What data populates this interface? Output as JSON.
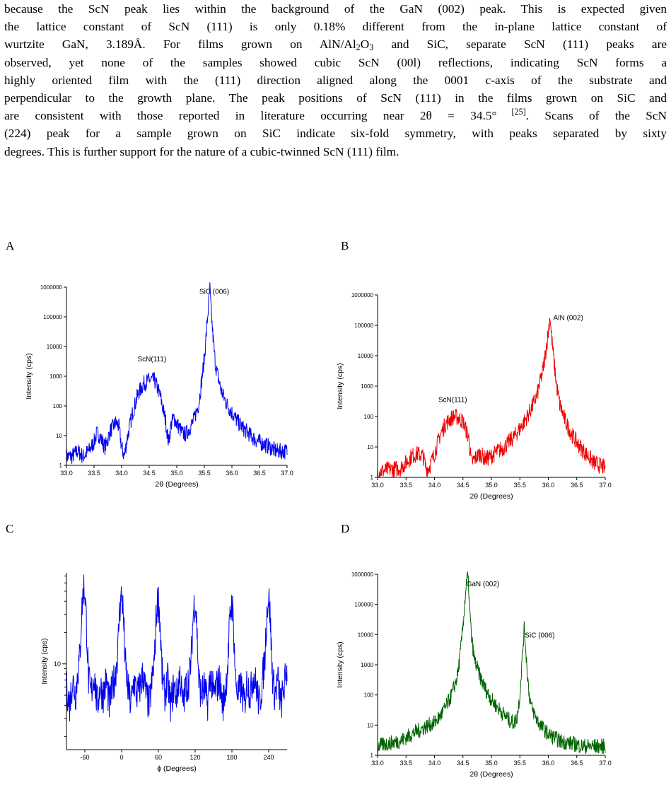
{
  "paragraph": {
    "l1": "because the ScN peak lies within the background of the GaN (002) peak. This is expected given",
    "l2": "the lattice constant of ScN (111) is only 0.18% different from the in-plane lattice constant of",
    "l3a": "wurtzite GaN, 3.189Å. For films grown on AlN/Al",
    "l3b": "2",
    "l3c": "O",
    "l3d": "3",
    "l3e": " and SiC, separate ScN (111) peaks are",
    "l4": "observed, yet none of the samples showed cubic ScN (00l) reflections, indicating ScN forms a",
    "l5": "highly oriented film with  the (111) direction aligned along the 0001 c-axis of the substrate and",
    "l6": "perpendicular to the growth plane. The peak positions of ScN (111) in the films grown on SiC and",
    "l7a": "are consistent with those reported in literature occurring near 2θ = 34.5°",
    "l7b": " [25]",
    "l7c": ". Scans of the ScN",
    "l8": "(224) peak for a sample grown on SiC indicate six-fold symmetry, with peaks separated by sixty",
    "l9": "degrees. This is further support for the nature of a cubic-twinned ScN (111) film."
  },
  "panels": {
    "a": "A",
    "b": "B",
    "c": "C",
    "d": "D"
  },
  "colors": {
    "a": "#0000ee",
    "b": "#ee0000",
    "c": "#0000ee",
    "d": "#006400"
  },
  "chart_data": [
    {
      "panel": "A",
      "type": "line",
      "scale": "log",
      "xlabel": "2θ (Degrees)",
      "ylabel": "Intensity (cps)",
      "xlim": [
        33.0,
        37.0
      ],
      "ylim": [
        1,
        1000000
      ],
      "xticks": [
        "33.0",
        "33.5",
        "34.0",
        "34.5",
        "35.0",
        "35.5",
        "36.0",
        "36.5",
        "37.0"
      ],
      "yticks": [
        "1",
        "10",
        "100",
        "1000",
        "10000",
        "100000",
        "1000000"
      ],
      "annotations": [
        {
          "text": "ScN(111)",
          "x": 34.55,
          "y": 3200
        },
        {
          "text": "SiC (006)",
          "x": 35.68,
          "y": 600000
        }
      ],
      "series": [
        {
          "x": [
            33.0,
            33.1,
            33.2,
            33.3,
            33.4,
            33.5,
            33.55,
            33.6,
            33.7,
            33.8,
            33.9,
            33.95,
            34.0,
            34.05,
            34.1,
            34.2,
            34.3,
            34.4,
            34.5,
            34.55,
            34.6,
            34.7,
            34.8,
            34.85,
            34.9,
            34.95,
            35.0,
            35.05,
            35.1,
            35.15,
            35.2,
            35.3,
            35.4,
            35.5,
            35.55,
            35.58,
            35.6,
            35.62,
            35.65,
            35.7,
            35.8,
            35.9,
            36.0,
            36.1,
            36.2,
            36.3,
            36.4,
            36.5,
            36.6,
            36.7,
            36.8,
            36.9,
            37.0
          ],
          "y": [
            2,
            2,
            3,
            2,
            3,
            6,
            12,
            10,
            4,
            15,
            28,
            20,
            4,
            2,
            8,
            60,
            260,
            560,
            750,
            760,
            700,
            220,
            30,
            6,
            25,
            40,
            25,
            18,
            12,
            11,
            14,
            30,
            120,
            4000,
            60000,
            300000,
            900000,
            200000,
            30000,
            2500,
            350,
            120,
            60,
            30,
            18,
            12,
            8,
            6,
            5,
            4,
            3,
            3,
            3
          ]
        }
      ]
    },
    {
      "panel": "B",
      "type": "line",
      "scale": "log",
      "xlabel": "2θ (Degrees)",
      "ylabel": "Intensity (cps)",
      "xlim": [
        33.0,
        37.0
      ],
      "ylim": [
        1,
        1000000
      ],
      "xticks": [
        "33.0",
        "33.5",
        "34.0",
        "34.5",
        "35.0",
        "35.5",
        "36.0",
        "36.5",
        "37.0"
      ],
      "yticks": [
        "1",
        "10",
        "100",
        "1000",
        "10000",
        "100000",
        "1000000"
      ],
      "annotations": [
        {
          "text": "ScN(111)",
          "x": 34.32,
          "y": 300
        },
        {
          "text": "AlN (002)",
          "x": 36.35,
          "y": 150000
        }
      ],
      "series": [
        {
          "x": [
            33.0,
            33.2,
            33.4,
            33.5,
            33.6,
            33.7,
            33.8,
            33.85,
            33.9,
            34.0,
            34.1,
            34.2,
            34.3,
            34.35,
            34.4,
            34.5,
            34.6,
            34.65,
            34.7,
            34.8,
            34.9,
            35.0,
            35.1,
            35.2,
            35.3,
            35.4,
            35.5,
            35.6,
            35.7,
            35.8,
            35.9,
            35.95,
            36.0,
            36.03,
            36.05,
            36.1,
            36.15,
            36.2,
            36.3,
            36.4,
            36.5,
            36.6,
            36.7,
            36.8,
            36.9,
            37.0
          ],
          "y": [
            1.5,
            1.8,
            2,
            3,
            5,
            6,
            5,
            2,
            2,
            6,
            25,
            60,
            90,
            100,
            95,
            70,
            20,
            3,
            4,
            6,
            4,
            5,
            7,
            9,
            14,
            22,
            40,
            80,
            180,
            500,
            3000,
            12000,
            60000,
            220000,
            60000,
            6000,
            900,
            250,
            70,
            28,
            14,
            8,
            5,
            3,
            2.5,
            2
          ]
        }
      ]
    },
    {
      "panel": "C",
      "type": "line",
      "scale": "log",
      "xlabel": "ϕ (Degrees)",
      "ylabel": "Intensity (cps)",
      "xlim": [
        -90,
        270
      ],
      "ylim": [
        1.5,
        75
      ],
      "xticks": [
        "-60",
        "0",
        "60",
        "120",
        "180",
        "240"
      ],
      "yticks": [
        "10"
      ],
      "series": [
        {
          "x": [
            -90,
            -85,
            -80,
            -75,
            -72,
            -68,
            -66,
            -64,
            -62,
            -60,
            -58,
            -56,
            -54,
            -50,
            -45,
            -40,
            -35,
            -30,
            -25,
            -20,
            -15,
            -10,
            -6,
            -4,
            -2,
            0,
            2,
            4,
            6,
            10,
            15,
            20,
            25,
            30,
            35,
            40,
            45,
            50,
            54,
            56,
            58,
            60,
            62,
            64,
            66,
            70,
            75,
            80,
            85,
            90,
            95,
            100,
            105,
            110,
            114,
            116,
            118,
            120,
            122,
            124,
            126,
            130,
            135,
            140,
            145,
            150,
            155,
            160,
            165,
            170,
            174,
            176,
            178,
            180,
            182,
            184,
            186,
            190,
            195,
            200,
            205,
            210,
            215,
            220,
            225,
            230,
            234,
            236,
            238,
            240,
            242,
            244,
            246,
            250,
            255,
            260,
            265,
            270
          ],
          "y": [
            6,
            4,
            7,
            5,
            8,
            12,
            25,
            40,
            55,
            50,
            30,
            15,
            7,
            5,
            8,
            4,
            6,
            5,
            7,
            4,
            6,
            8,
            14,
            28,
            40,
            45,
            35,
            20,
            10,
            6,
            4,
            7,
            5,
            6,
            8,
            5,
            4,
            7,
            12,
            25,
            38,
            42,
            30,
            16,
            8,
            5,
            7,
            4,
            6,
            5,
            8,
            4,
            6,
            7,
            12,
            24,
            36,
            40,
            30,
            14,
            7,
            5,
            6,
            4,
            8,
            5,
            6,
            7,
            4,
            6,
            12,
            22,
            34,
            38,
            28,
            14,
            7,
            5,
            6,
            4,
            7,
            5,
            8,
            6,
            4,
            7,
            12,
            24,
            38,
            44,
            32,
            16,
            8,
            5,
            7,
            4,
            6,
            9
          ]
        }
      ]
    },
    {
      "panel": "D",
      "type": "line",
      "scale": "log",
      "xlabel": "2θ (Degrees)",
      "ylabel": "Intensity (cps)",
      "xlim": [
        33.0,
        37.0
      ],
      "ylim": [
        1,
        1000000
      ],
      "xticks": [
        "33.0",
        "33.5",
        "34.0",
        "34.5",
        "35.0",
        "35.5",
        "36.0",
        "36.5",
        "37.0"
      ],
      "yticks": [
        "1",
        "10",
        "100",
        "1000",
        "10000",
        "100000",
        "1000000"
      ],
      "annotations": [
        {
          "text": "GaN (002)",
          "x": 34.85,
          "y": 400000
        },
        {
          "text": "SiC (006)",
          "x": 35.85,
          "y": 8000
        }
      ],
      "series": [
        {
          "x": [
            33.0,
            33.2,
            33.4,
            33.6,
            33.8,
            33.9,
            34.0,
            34.1,
            34.2,
            34.3,
            34.4,
            34.45,
            34.5,
            34.55,
            34.58,
            34.6,
            34.62,
            34.65,
            34.7,
            34.8,
            34.9,
            35.0,
            35.1,
            35.2,
            35.3,
            35.4,
            35.45,
            35.5,
            35.55,
            35.58,
            35.6,
            35.63,
            35.66,
            35.7,
            35.8,
            35.9,
            36.0,
            36.2,
            36.4,
            36.6,
            36.8,
            37.0
          ],
          "y": [
            2,
            2.5,
            3,
            5,
            8,
            10,
            12,
            20,
            40,
            100,
            400,
            2000,
            20000,
            300000,
            900000,
            400000,
            60000,
            8000,
            1500,
            400,
            150,
            70,
            40,
            25,
            15,
            12,
            18,
            100,
            3000,
            18000,
            4000,
            600,
            120,
            40,
            15,
            8,
            5,
            3,
            2.5,
            2,
            2,
            2
          ]
        }
      ]
    }
  ]
}
